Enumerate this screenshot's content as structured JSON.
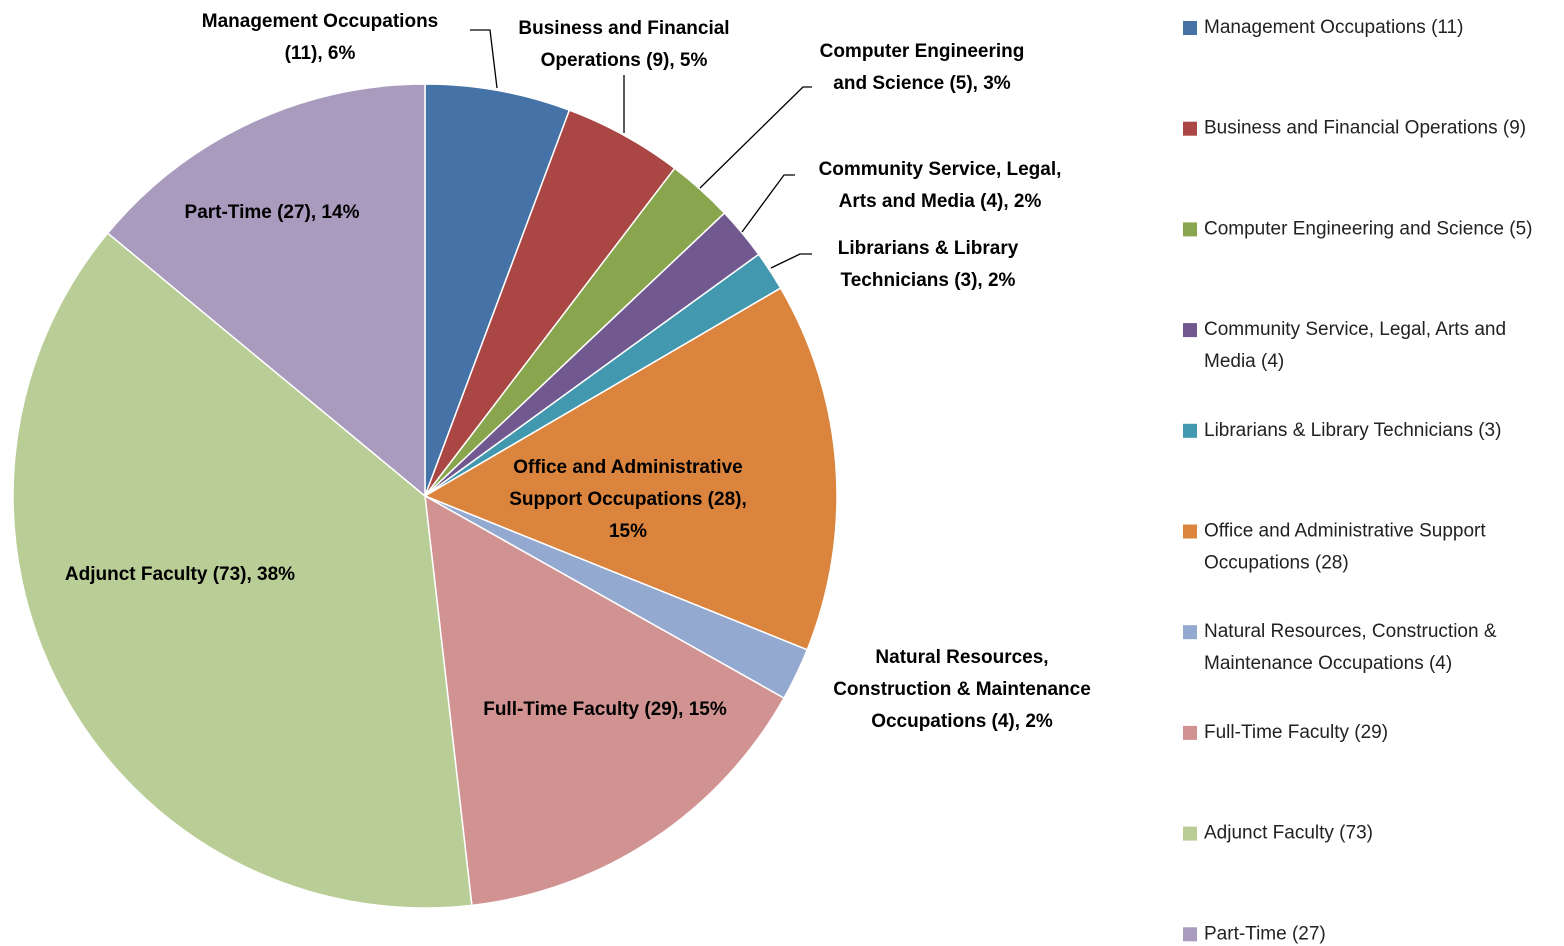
{
  "chart_data": {
    "type": "pie",
    "categories": [
      "Management Occupations (11)",
      "Business and Financial Operations (9)",
      "Computer Engineering and Science (5)",
      "Community Service, Legal, Arts and Media (4)",
      "Librarians & Library Technicians (3)",
      "Office and Administrative Support Occupations (28)",
      "Natural Resources, Construction & Maintenance Occupations (4)",
      "Full-Time Faculty (29)",
      "Adjunct Faculty (73)",
      "Part-Time (27)"
    ],
    "values": [
      11,
      9,
      5,
      4,
      3,
      28,
      4,
      29,
      73,
      27
    ],
    "colors": [
      "#4572A7",
      "#AA4643",
      "#89A54E",
      "#71588F",
      "#4198AF",
      "#DB843D",
      "#93A9CF",
      "#D19392",
      "#B9CD96",
      "#A99BBD"
    ],
    "data_labels": [
      [
        "Management Occupations",
        "(11), 6%"
      ],
      [
        "Business and Financial",
        "Operations (9), 5%"
      ],
      [
        "Computer Engineering",
        "and Science (5), 3%"
      ],
      [
        "Community Service, Legal,",
        "Arts and Media (4), 2%"
      ],
      [
        "Librarians & Library",
        "Technicians (3), 2%"
      ],
      [
        "Office and Administrative",
        "Support Occupations (28),",
        "15%"
      ],
      [
        "Natural Resources,",
        "Construction & Maintenance",
        "Occupations (4), 2%"
      ],
      [
        "Full-Time Faculty (29), 15%"
      ],
      [
        "Adjunct Faculty (73), 38%"
      ],
      [
        "Part-Time (27), 14%"
      ]
    ],
    "legend": "right"
  }
}
